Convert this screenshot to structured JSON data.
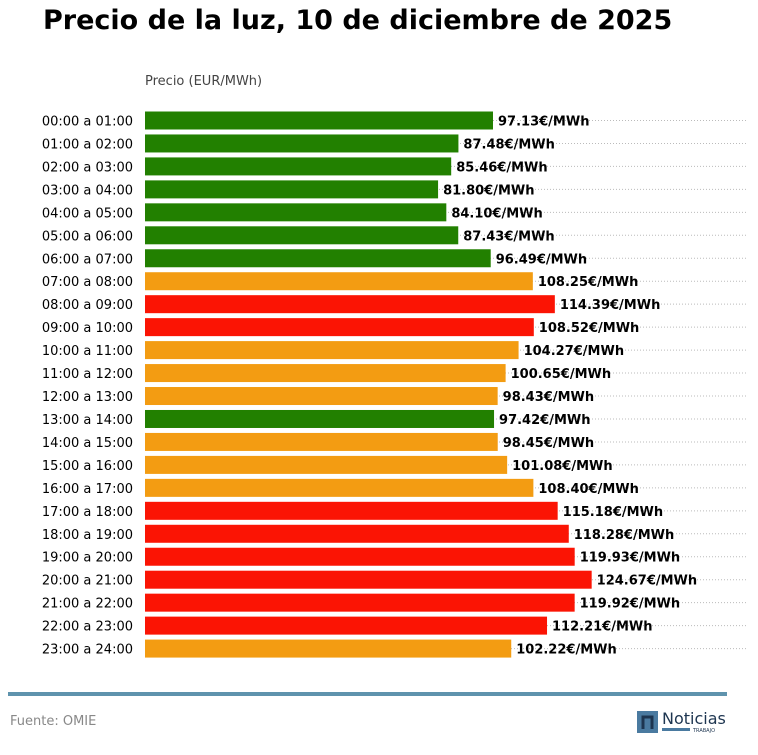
{
  "chart_data": {
    "type": "bar",
    "orientation": "horizontal",
    "title": "Precio de la luz, 10 de diciembre de 2025",
    "xlabel": "Precio (EUR/MWh)",
    "ylabel": "",
    "value_suffix": "€/MWh",
    "xlim": [
      0,
      168
    ],
    "grid": "dotted horizontal lines",
    "categories": [
      "00:00 a 01:00",
      "01:00 a 02:00",
      "02:00 a 03:00",
      "03:00 a 04:00",
      "04:00 a 05:00",
      "05:00 a 06:00",
      "06:00 a 07:00",
      "07:00 a 08:00",
      "08:00 a 09:00",
      "09:00 a 10:00",
      "10:00 a 11:00",
      "11:00 a 12:00",
      "12:00 a 13:00",
      "13:00 a 14:00",
      "14:00 a 15:00",
      "15:00 a 16:00",
      "16:00 a 17:00",
      "17:00 a 18:00",
      "18:00 a 19:00",
      "19:00 a 20:00",
      "20:00 a 21:00",
      "21:00 a 22:00",
      "22:00 a 23:00",
      "23:00 a 24:00"
    ],
    "values": [
      97.13,
      87.48,
      85.46,
      81.8,
      84.1,
      87.43,
      96.49,
      108.25,
      114.39,
      108.52,
      104.27,
      100.65,
      98.43,
      97.42,
      98.45,
      101.08,
      108.4,
      115.18,
      118.28,
      119.93,
      124.67,
      119.92,
      112.21,
      102.22
    ],
    "value_labels": [
      "97.13€/MWh",
      "87.48€/MWh",
      "85.46€/MWh",
      "81.80€/MWh",
      "84.10€/MWh",
      "87.43€/MWh",
      "96.49€/MWh",
      "108.25€/MWh",
      "114.39€/MWh",
      "108.52€/MWh",
      "104.27€/MWh",
      "100.65€/MWh",
      "98.43€/MWh",
      "97.42€/MWh",
      "98.45€/MWh",
      "101.08€/MWh",
      "108.40€/MWh",
      "115.18€/MWh",
      "118.28€/MWh",
      "119.93€/MWh",
      "124.67€/MWh",
      "119.92€/MWh",
      "112.21€/MWh",
      "102.22€/MWh"
    ],
    "bar_colors": [
      "green",
      "green",
      "green",
      "green",
      "green",
      "green",
      "green",
      "orange",
      "red",
      "red",
      "orange",
      "orange",
      "orange",
      "green",
      "orange",
      "orange",
      "orange",
      "red",
      "red",
      "red",
      "red",
      "red",
      "red",
      "orange"
    ],
    "palette": {
      "green": "#228000",
      "orange": "#f39c12",
      "red": "#fb1404"
    }
  },
  "footer": {
    "source": "Fuente: OMIE",
    "logo_text": "Noticias",
    "logo_subtext": "TRABAJO"
  },
  "colors": {
    "rule": "#5f93ad",
    "logo": "#4a7aa0"
  }
}
